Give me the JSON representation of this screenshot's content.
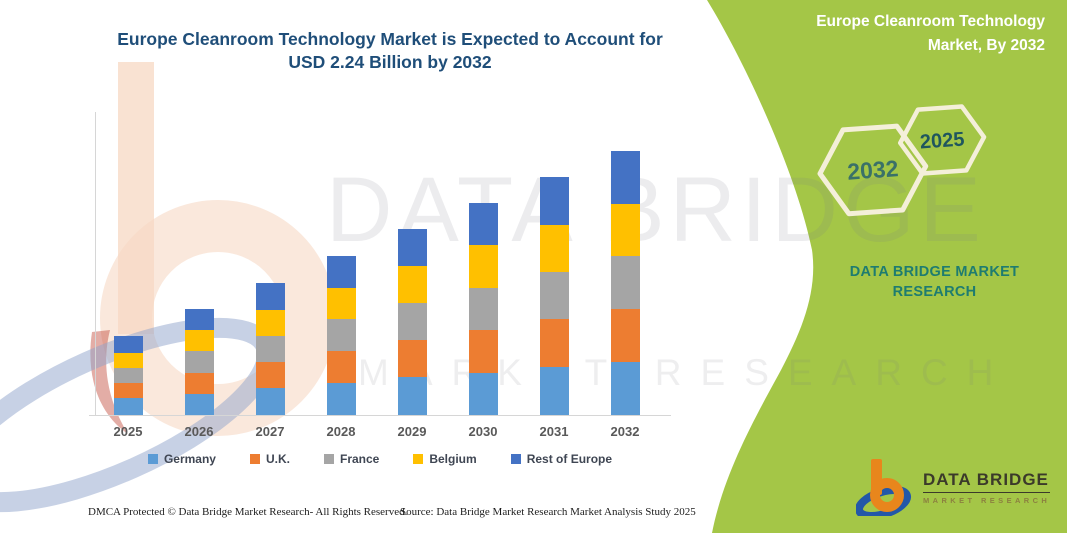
{
  "title": {
    "line1": "Europe Cleanroom Technology Market is Expected to Account for",
    "line2": "USD 2.24 Billion by 2032"
  },
  "chart_data": {
    "type": "bar",
    "stacked": true,
    "unit": "USD Billion",
    "categories": [
      "2025",
      "2026",
      "2027",
      "2028",
      "2029",
      "2030",
      "2031",
      "2032"
    ],
    "series": [
      {
        "name": "Germany",
        "color": "#5B9BD5",
        "values": [
          0.14,
          0.18,
          0.23,
          0.27,
          0.32,
          0.36,
          0.41,
          0.45
        ]
      },
      {
        "name": "U.K.",
        "color": "#ED7D31",
        "values": [
          0.13,
          0.18,
          0.22,
          0.27,
          0.32,
          0.36,
          0.4,
          0.45
        ]
      },
      {
        "name": "France",
        "color": "#A5A5A5",
        "values": [
          0.13,
          0.18,
          0.22,
          0.27,
          0.31,
          0.36,
          0.4,
          0.45
        ]
      },
      {
        "name": "Belgium",
        "color": "#FFC000",
        "values": [
          0.13,
          0.18,
          0.22,
          0.27,
          0.31,
          0.36,
          0.4,
          0.44
        ]
      },
      {
        "name": "Rest of Europe",
        "color": "#4472C4",
        "values": [
          0.14,
          0.18,
          0.23,
          0.27,
          0.32,
          0.36,
          0.41,
          0.45
        ]
      }
    ],
    "totals": [
      0.67,
      0.9,
      1.12,
      1.35,
      1.58,
      1.8,
      2.02,
      2.24
    ],
    "ylim": [
      0,
      2.4
    ],
    "grid": false,
    "legend_position": "bottom"
  },
  "watermark": {
    "line1": "DATA BRIDGE",
    "line2": "MARKET RESEARCH"
  },
  "banner": {
    "green": "#A4C647",
    "title_line1": "Europe Cleanroom Technology",
    "title_line2": "Market, By 2032",
    "hexagon_large": "2032",
    "hexagon_small": "2025",
    "brand_line1": "DATA BRIDGE MARKET",
    "brand_line2": "RESEARCH"
  },
  "logo": {
    "name": "DATA BRIDGE",
    "sub": "MARKET RESEARCH"
  },
  "footer": {
    "left": "DMCA Protected © Data Bridge Market Research-  All Rights Reserved.",
    "source": "Source: Data Bridge Market Research  Market Analysis Study 2025"
  }
}
